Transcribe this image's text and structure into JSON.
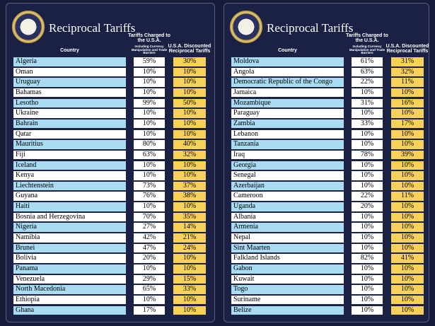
{
  "panels": [
    {
      "title": "Reciprocal Tariffs",
      "headers": {
        "country": "Country",
        "charged": "Tariffs Charged to the U.S.A.",
        "charged_note": "Including Currency Manipulation and Trade Barriers",
        "discounted": "U.S.A. Discounted Reciprocal Tariffs"
      },
      "rows": [
        [
          "Algeria",
          "59%",
          "30%"
        ],
        [
          "Oman",
          "10%",
          "10%"
        ],
        [
          "Uruguay",
          "10%",
          "10%"
        ],
        [
          "Bahamas",
          "10%",
          "10%"
        ],
        [
          "Lesotho",
          "99%",
          "50%"
        ],
        [
          "Ukraine",
          "10%",
          "10%"
        ],
        [
          "Bahrain",
          "10%",
          "10%"
        ],
        [
          "Qatar",
          "10%",
          "10%"
        ],
        [
          "Mauritius",
          "80%",
          "40%"
        ],
        [
          "Fiji",
          "63%",
          "32%"
        ],
        [
          "Iceland",
          "10%",
          "10%"
        ],
        [
          "Kenya",
          "10%",
          "10%"
        ],
        [
          "Liechtenstein",
          "73%",
          "37%"
        ],
        [
          "Guyana",
          "76%",
          "38%"
        ],
        [
          "Haiti",
          "10%",
          "10%"
        ],
        [
          "Bosnia and Herzegovina",
          "70%",
          "35%"
        ],
        [
          "Nigeria",
          "27%",
          "14%"
        ],
        [
          "Namibia",
          "42%",
          "21%"
        ],
        [
          "Brunei",
          "47%",
          "24%"
        ],
        [
          "Bolivia",
          "20%",
          "10%"
        ],
        [
          "Panama",
          "10%",
          "10%"
        ],
        [
          "Venezuela",
          "29%",
          "15%"
        ],
        [
          "North Macedonia",
          "65%",
          "33%"
        ],
        [
          "Ethiopia",
          "10%",
          "10%"
        ],
        [
          "Ghana",
          "17%",
          "10%"
        ]
      ]
    },
    {
      "title": "Reciprocal Tariffs",
      "headers": {
        "country": "Country",
        "charged": "Tariffs Charged to the U.S.A.",
        "charged_note": "Including Currency Manipulation and Trade Barriers",
        "discounted": "U.S.A. Discounted Reciprocal Tariffs"
      },
      "rows": [
        [
          "Moldova",
          "61%",
          "31%"
        ],
        [
          "Angola",
          "63%",
          "32%"
        ],
        [
          "Democratic Republic of the Congo",
          "22%",
          "11%"
        ],
        [
          "Jamaica",
          "10%",
          "10%"
        ],
        [
          "Mozambique",
          "31%",
          "16%"
        ],
        [
          "Paraguay",
          "10%",
          "10%"
        ],
        [
          "Zambia",
          "33%",
          "17%"
        ],
        [
          "Lebanon",
          "10%",
          "10%"
        ],
        [
          "Tanzania",
          "10%",
          "10%"
        ],
        [
          "Iraq",
          "78%",
          "39%"
        ],
        [
          "Georgia",
          "10%",
          "10%"
        ],
        [
          "Senegal",
          "10%",
          "10%"
        ],
        [
          "Azerbaijan",
          "10%",
          "10%"
        ],
        [
          "Cameroon",
          "22%",
          "11%"
        ],
        [
          "Uganda",
          "20%",
          "10%"
        ],
        [
          "Albania",
          "10%",
          "10%"
        ],
        [
          "Armenia",
          "10%",
          "10%"
        ],
        [
          "Nepal",
          "10%",
          "10%"
        ],
        [
          "Sint Maarten",
          "10%",
          "10%"
        ],
        [
          "Falkland Islands",
          "82%",
          "41%"
        ],
        [
          "Gabon",
          "10%",
          "10%"
        ],
        [
          "Kuwait",
          "10%",
          "10%"
        ],
        [
          "Togo",
          "10%",
          "10%"
        ],
        [
          "Suriname",
          "10%",
          "10%"
        ],
        [
          "Belize",
          "10%",
          "10%"
        ]
      ]
    }
  ]
}
